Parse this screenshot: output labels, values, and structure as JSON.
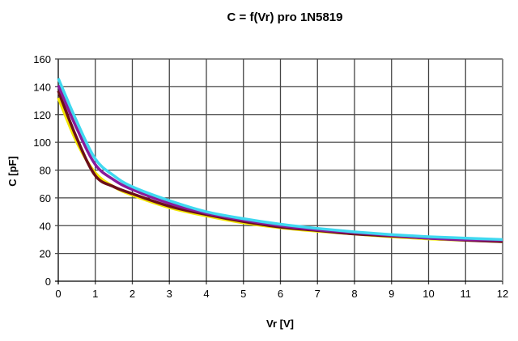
{
  "chart_data": {
    "type": "line",
    "title": "C = f(Vr) pro 1N5819",
    "xlabel": "Vr [V]",
    "ylabel": "C [pF]",
    "xlim": [
      0,
      12
    ],
    "ylim": [
      0,
      160
    ],
    "xticks": [
      "0",
      "1",
      "2",
      "3",
      "4",
      "5",
      "6",
      "7",
      "8",
      "9",
      "10",
      "11",
      "12"
    ],
    "yticks": [
      "0",
      "20",
      "40",
      "60",
      "80",
      "100",
      "120",
      "140",
      "160"
    ],
    "grid": true,
    "legend": "none",
    "x": [
      0,
      0.5,
      1,
      1.5,
      2,
      3,
      4,
      5,
      6,
      7,
      8,
      9,
      10,
      11,
      12
    ],
    "series": [
      {
        "color": "#f2e600",
        "values": [
          132,
          100,
          78,
          68,
          62,
          53,
          47,
          42,
          38.5,
          36,
          34,
          32,
          30.5,
          29.5,
          28.5
        ]
      },
      {
        "color": "#6b0f1a",
        "values": [
          137,
          103,
          76,
          68,
          63,
          54,
          48,
          43,
          39,
          36.5,
          34,
          32.5,
          31,
          29.5,
          28.5
        ]
      },
      {
        "color": "#8a1a9a",
        "values": [
          141,
          110,
          84,
          73,
          66,
          56,
          49,
          44,
          40,
          37,
          35,
          33,
          31,
          30,
          29.5
        ]
      },
      {
        "color": "#3fd8f0",
        "values": [
          146,
          115,
          88,
          76,
          68,
          58,
          50,
          45,
          41,
          38,
          35.5,
          33.5,
          32,
          31,
          30
        ]
      }
    ]
  }
}
